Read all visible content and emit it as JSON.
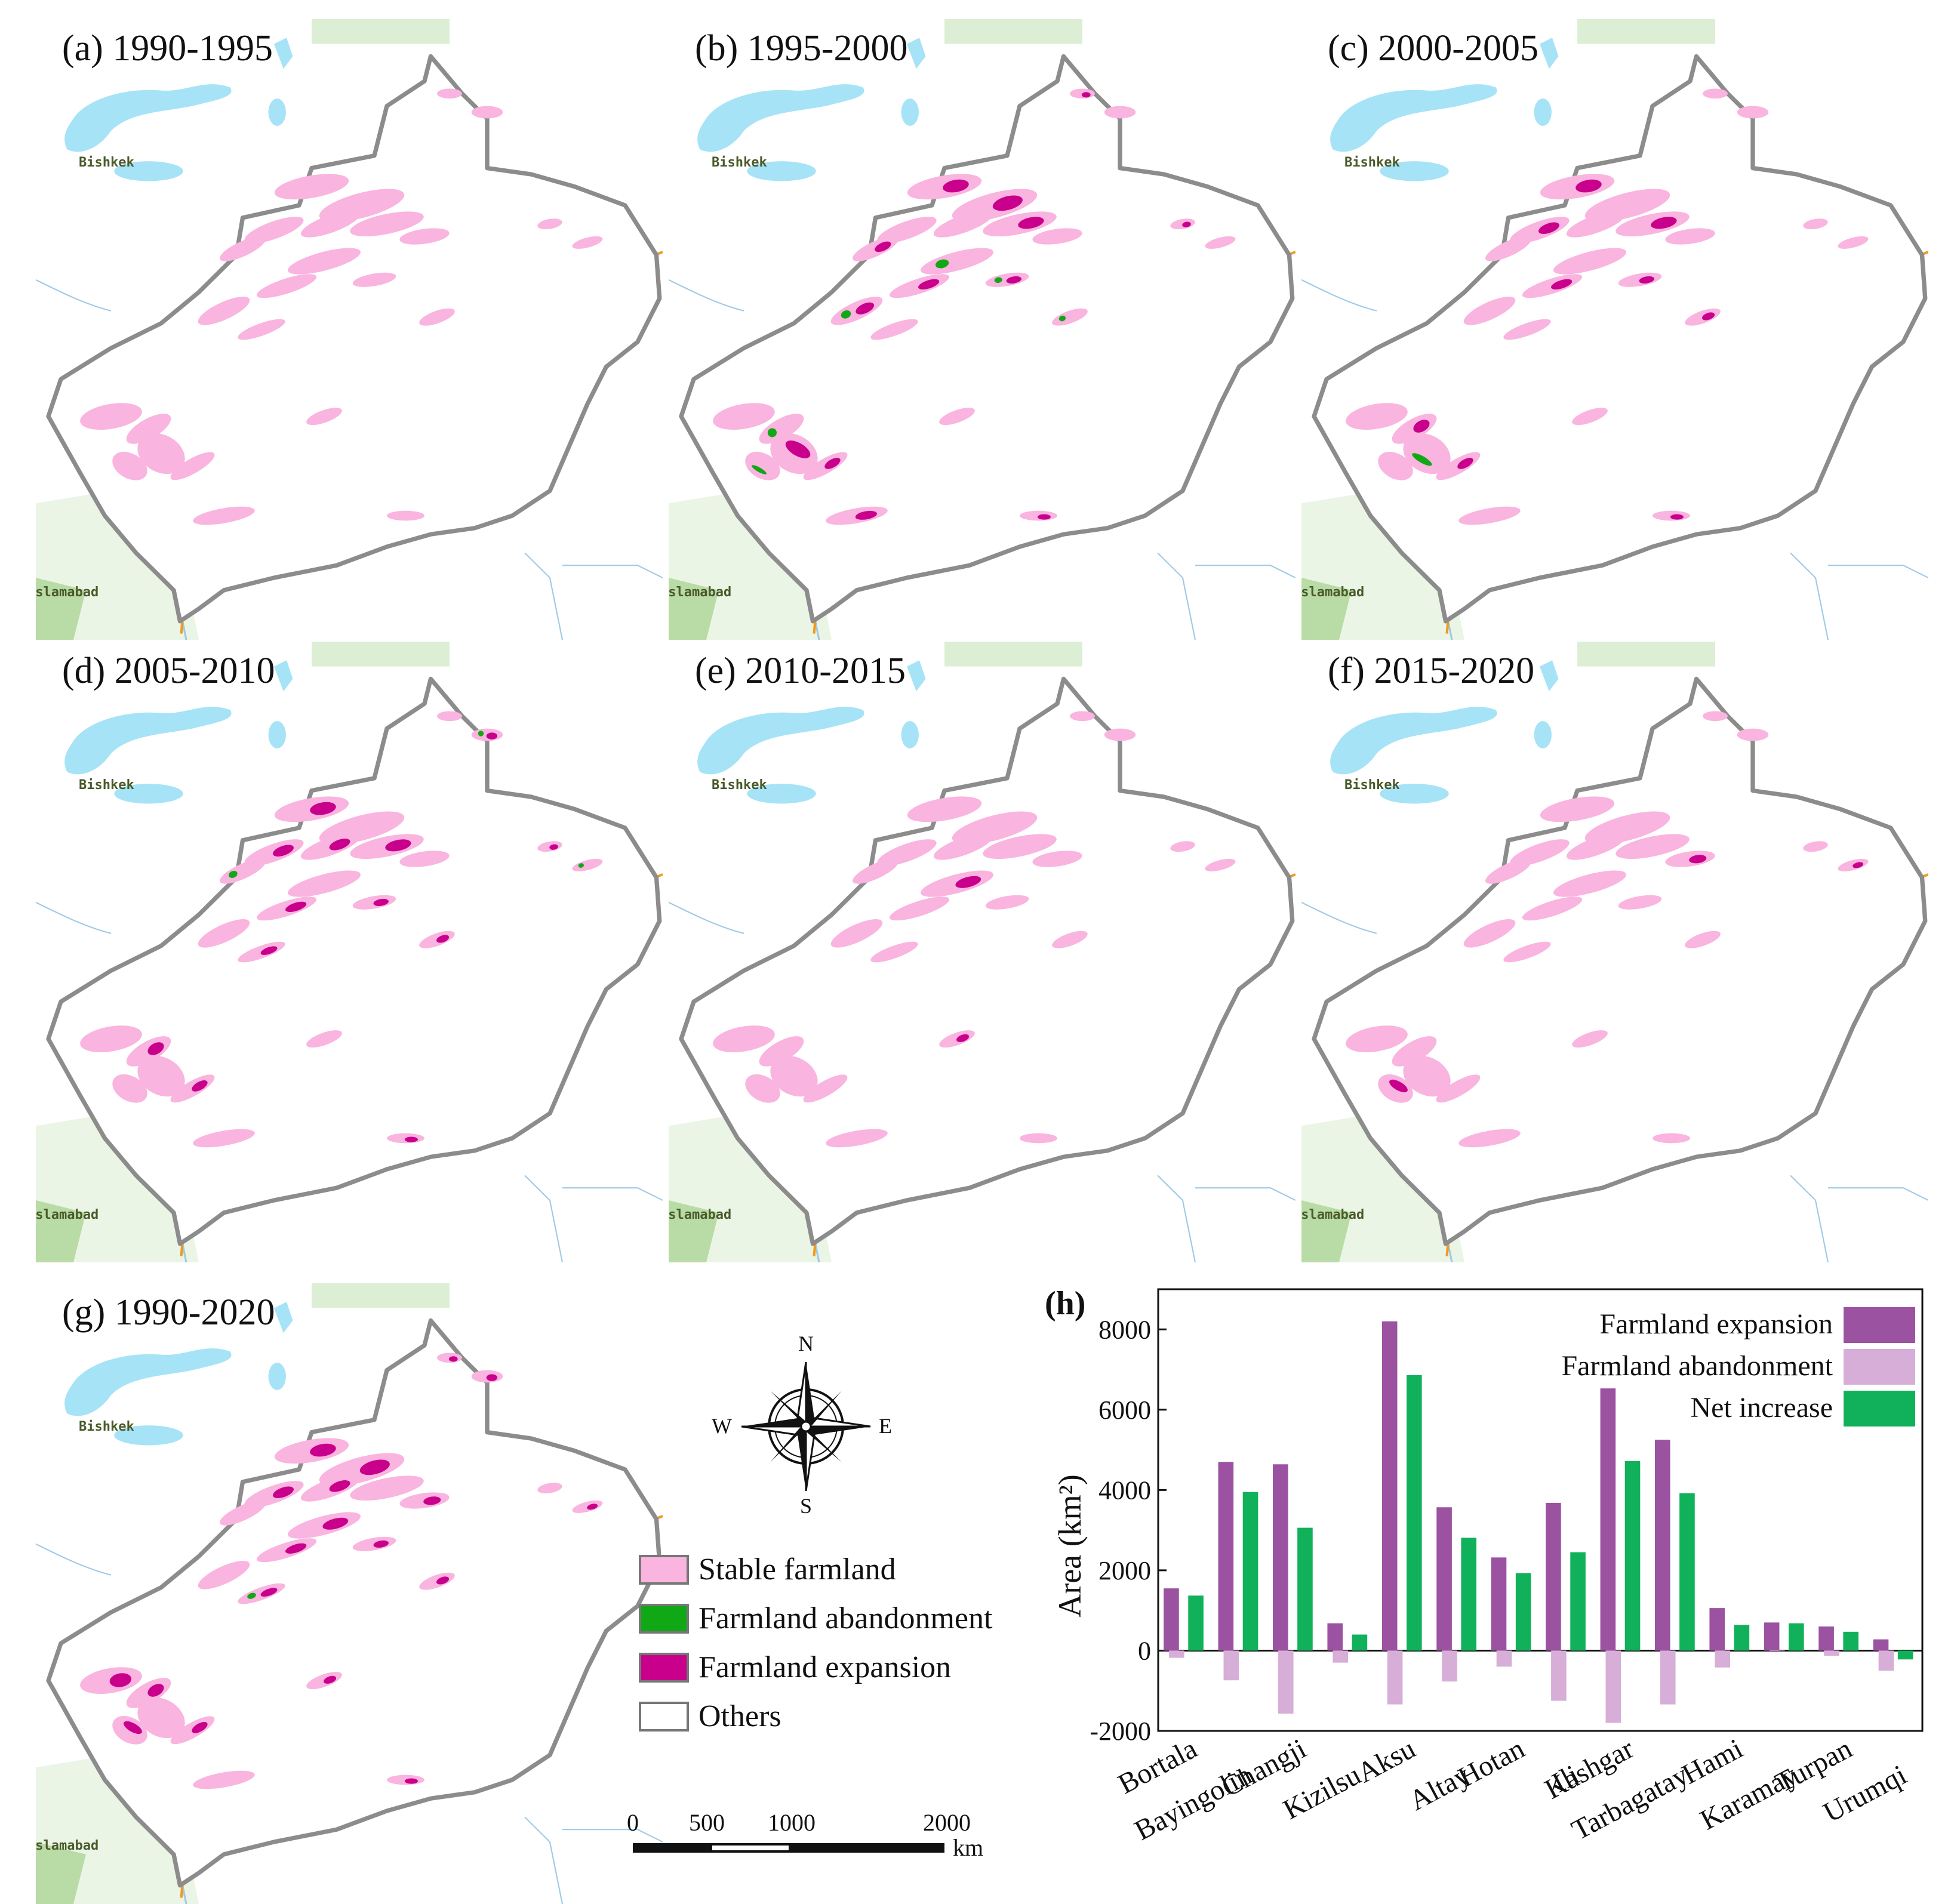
{
  "panels": [
    {
      "id": "a",
      "label": "(a) 1990-1995",
      "style": "stable"
    },
    {
      "id": "b",
      "label": "(b) 1995-2000",
      "style": "mixed"
    },
    {
      "id": "c",
      "label": "(c) 2000-2005",
      "style": "mixed-light"
    },
    {
      "id": "d",
      "label": "(d) 2005-2010",
      "style": "expansion"
    },
    {
      "id": "e",
      "label": "(e) 2010-2015",
      "style": "stable-light"
    },
    {
      "id": "f",
      "label": "(f) 2015-2020",
      "style": "stable-light"
    },
    {
      "id": "g",
      "label": "(g) 1990-2020",
      "style": "strong-expansion"
    }
  ],
  "map_labels": {
    "bishkek": "Bishkek",
    "islamabad": "Islamabad"
  },
  "compass": {
    "n": "N",
    "s": "S",
    "e": "E",
    "w": "W"
  },
  "legend": [
    {
      "label": "Stable farmland",
      "color": "#f9b4df"
    },
    {
      "label": "Farmland abandonment",
      "color": "#10a815"
    },
    {
      "label": "Farmland expansion",
      "color": "#c8008c"
    },
    {
      "label": "Others",
      "color": "#ffffff"
    }
  ],
  "scalebar": {
    "ticks": [
      "0",
      "500",
      "1000",
      "2000"
    ],
    "unit": "km"
  },
  "colors": {
    "stable": "#f9b4df",
    "abandon": "#10a815",
    "expand": "#c8008c",
    "water": "#a6e3f7",
    "border": "#8c8c8c",
    "vegetation": "#cde8c2",
    "road": "#f39a1c"
  },
  "chart_data": {
    "type": "bar",
    "panel_label": "(h)",
    "ylabel": "Area (km²)",
    "ylim": [
      -2000,
      9000
    ],
    "yticks": [
      -2000,
      0,
      2000,
      4000,
      6000,
      8000
    ],
    "categories": [
      "Bortala",
      "Bayingolin",
      "Changji",
      "Kizilsu",
      "Aksu",
      "Altay",
      "Hotan",
      "Ili",
      "Kashgar",
      "Tarbagatay",
      "Hami",
      "Karamay",
      "Turpan",
      "Urumqi"
    ],
    "series": [
      {
        "name": "Farmland expansion",
        "color": "#9b52a0",
        "values": [
          1550,
          4700,
          4640,
          680,
          8200,
          3570,
          2320,
          3680,
          6530,
          5250,
          1060,
          700,
          600,
          280
        ]
      },
      {
        "name": "Farmland abandonment",
        "color": "#d7aed8",
        "values": [
          -180,
          -740,
          -1570,
          -300,
          -1340,
          -770,
          -400,
          -1250,
          -1800,
          -1340,
          -420,
          -10,
          -130,
          -500
        ]
      },
      {
        "name": "Net increase",
        "color": "#10b15a",
        "values": [
          1370,
          3950,
          3060,
          400,
          6860,
          2810,
          1930,
          2450,
          4720,
          3920,
          640,
          680,
          470,
          -220
        ]
      }
    ]
  }
}
